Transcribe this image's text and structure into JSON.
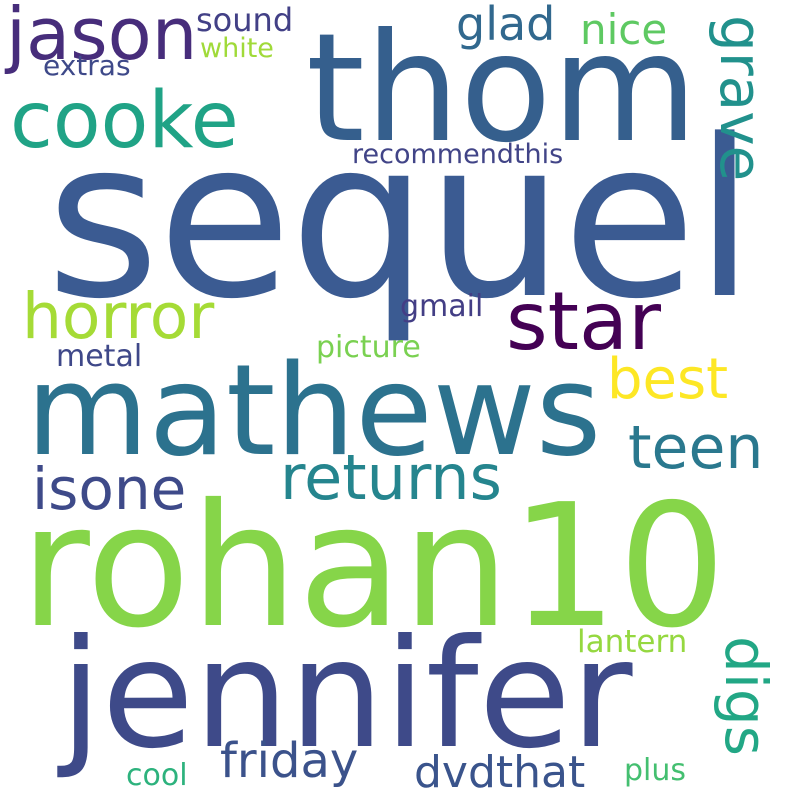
{
  "words": [
    {
      "key": "sequel",
      "text": "sequel",
      "color": "#3b5b92"
    },
    {
      "key": "thom",
      "text": "thom",
      "color": "#355f8d"
    },
    {
      "key": "jason",
      "text": "jason",
      "color": "#472d7b"
    },
    {
      "key": "sound",
      "text": "sound",
      "color": "#424086"
    },
    {
      "key": "white",
      "text": "white",
      "color": "#a0da39"
    },
    {
      "key": "extras",
      "text": "extras",
      "color": "#3e4989"
    },
    {
      "key": "glad",
      "text": "glad",
      "color": "#31688e"
    },
    {
      "key": "nice",
      "text": "nice",
      "color": "#5ec962"
    },
    {
      "key": "grave",
      "text": "grave",
      "color": "#21918c"
    },
    {
      "key": "cooke",
      "text": "cooke",
      "color": "#20a386"
    },
    {
      "key": "recommendthis",
      "text": "recommendthis",
      "color": "#414487"
    },
    {
      "key": "horror",
      "text": "horror",
      "color": "#a5db36"
    },
    {
      "key": "star",
      "text": "star",
      "color": "#440154"
    },
    {
      "key": "gmail",
      "text": "gmail",
      "color": "#433e85"
    },
    {
      "key": "metal",
      "text": "metal",
      "color": "#3f4889"
    },
    {
      "key": "picture",
      "text": "picture",
      "color": "#7ad151"
    },
    {
      "key": "best",
      "text": "best",
      "color": "#fde725"
    },
    {
      "key": "mathews",
      "text": "mathews",
      "color": "#2c728e"
    },
    {
      "key": "teen",
      "text": "teen",
      "color": "#2a788e"
    },
    {
      "key": "isone",
      "text": "isone",
      "color": "#3e4a89"
    },
    {
      "key": "returns",
      "text": "returns",
      "color": "#25858e"
    },
    {
      "key": "rohan10",
      "text": "rohan10",
      "color": "#86d549"
    },
    {
      "key": "lantern",
      "text": "lantern",
      "color": "#95d840"
    },
    {
      "key": "digs",
      "text": "digs",
      "color": "#22a785"
    },
    {
      "key": "jennifer",
      "text": "jennifer",
      "color": "#3e4a89"
    },
    {
      "key": "friday",
      "text": "friday",
      "color": "#3b528b"
    },
    {
      "key": "dvdthat",
      "text": "dvdthat",
      "color": "#3a548c"
    },
    {
      "key": "cool",
      "text": "cool",
      "color": "#2db27d"
    },
    {
      "key": "plus",
      "text": "plus",
      "color": "#44bf70"
    }
  ]
}
